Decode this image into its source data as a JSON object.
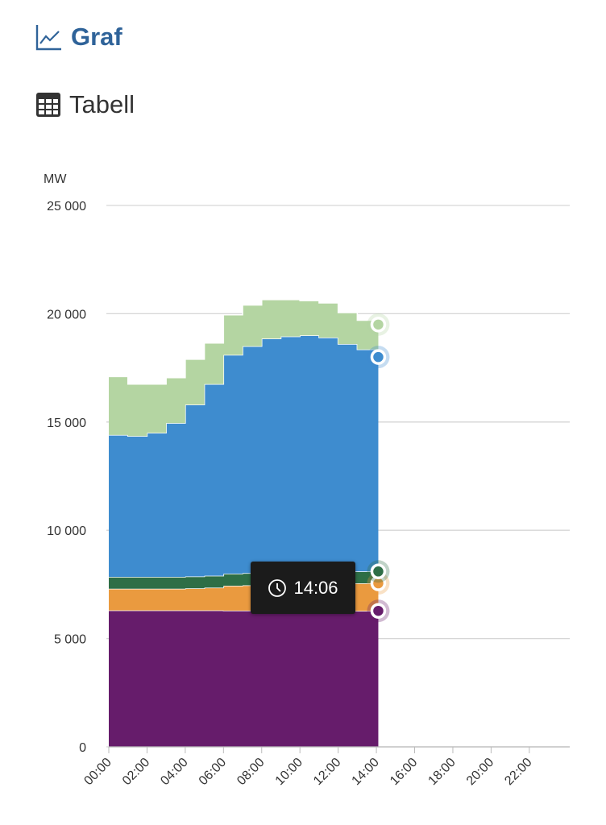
{
  "nav": {
    "graph_label": "Graf",
    "table_label": "Tabell"
  },
  "tooltip": {
    "time": "14:06"
  },
  "chart_data": {
    "type": "area",
    "stacked": true,
    "step": true,
    "ylabel": "MW",
    "ylim": [
      0,
      25000
    ],
    "y_ticks": [
      "0",
      "5 000",
      "10 000",
      "15 000",
      "20 000",
      "25 000"
    ],
    "y_tick_values": [
      0,
      5000,
      10000,
      15000,
      20000,
      25000
    ],
    "x_ticks": [
      "00:00",
      "02:00",
      "04:00",
      "06:00",
      "08:00",
      "10:00",
      "12:00",
      "14:00",
      "16:00",
      "18:00",
      "20:00",
      "22:00"
    ],
    "xlim_hours": [
      0,
      24
    ],
    "grid": true,
    "x_hours": [
      0,
      1,
      2,
      3,
      4,
      5,
      6,
      7,
      8,
      9,
      10,
      11,
      12,
      13,
      14
    ],
    "end_hour": 14.1,
    "series": [
      {
        "color": "#661c6b",
        "values": [
          6300,
          6300,
          6300,
          6300,
          6300,
          6300,
          6290,
          6290,
          6290,
          6290,
          6280,
          6280,
          6280,
          6280,
          6280
        ]
      },
      {
        "color": "#ea9a3f",
        "values": [
          1000,
          1000,
          1000,
          1000,
          1020,
          1050,
          1150,
          1170,
          1200,
          1210,
          1250,
          1260,
          1270,
          1270,
          1270
        ]
      },
      {
        "color": "#2e6e46",
        "values": [
          550,
          550,
          550,
          550,
          550,
          550,
          560,
          560,
          540,
          600,
          570,
          560,
          550,
          550,
          550
        ]
      },
      {
        "color": "#3e8ccf",
        "values": [
          6550,
          6500,
          6650,
          7100,
          7930,
          8850,
          10100,
          10480,
          10820,
          10850,
          10900,
          10800,
          10500,
          10250,
          9900
        ]
      },
      {
        "color": "#b4d5a2",
        "values": [
          2700,
          2400,
          2250,
          2100,
          2100,
          1900,
          1850,
          1900,
          1800,
          1700,
          1600,
          1600,
          1450,
          1350,
          1500
        ]
      }
    ]
  }
}
